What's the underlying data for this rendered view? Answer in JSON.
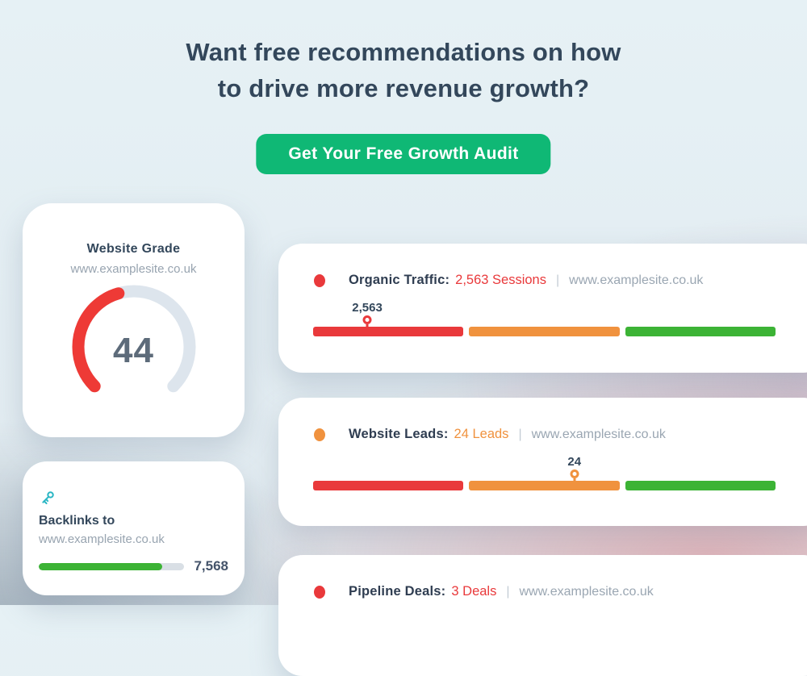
{
  "banner": {
    "headline_line1": "Want free recommendations on how",
    "headline_line2": "to drive more revenue growth?",
    "cta_label": "Get Your Free Growth Audit"
  },
  "colors": {
    "cta_green": "#0fb875",
    "navy_text": "#33475b",
    "muted_gray": "#98a4b0",
    "status_red": "#e9393b",
    "status_orange": "#f0923e",
    "status_green": "#3cb335",
    "gauge_track": "#dde5ed",
    "key_icon_teal": "#2ab6c4"
  },
  "website_grade_card": {
    "title": "Website Grade",
    "url": "www.examplesite.co.uk",
    "score": 44,
    "score_max": 100
  },
  "backlinks_card": {
    "title": "Backlinks to",
    "url": "www.examplesite.co.uk",
    "value": "7,568",
    "progress_pct": 85
  },
  "metric_cards": [
    {
      "label": "Organic Traffic:",
      "value_text": "2,563 Sessions",
      "separator": "|",
      "url": "www.examplesite.co.uk",
      "status_color": "#e9393b",
      "marker_label": "2,563",
      "marker_pct": 11.7
    },
    {
      "label": "Website Leads:",
      "value_text": "24 Leads",
      "separator": "|",
      "url": "www.examplesite.co.uk",
      "status_color": "#f0923e",
      "marker_label": "24",
      "marker_pct": 56.5
    },
    {
      "label": "Pipeline Deals:",
      "value_text": "3 Deals",
      "separator": "|",
      "url": "www.examplesite.co.uk",
      "status_color": "#e9393b"
    }
  ]
}
